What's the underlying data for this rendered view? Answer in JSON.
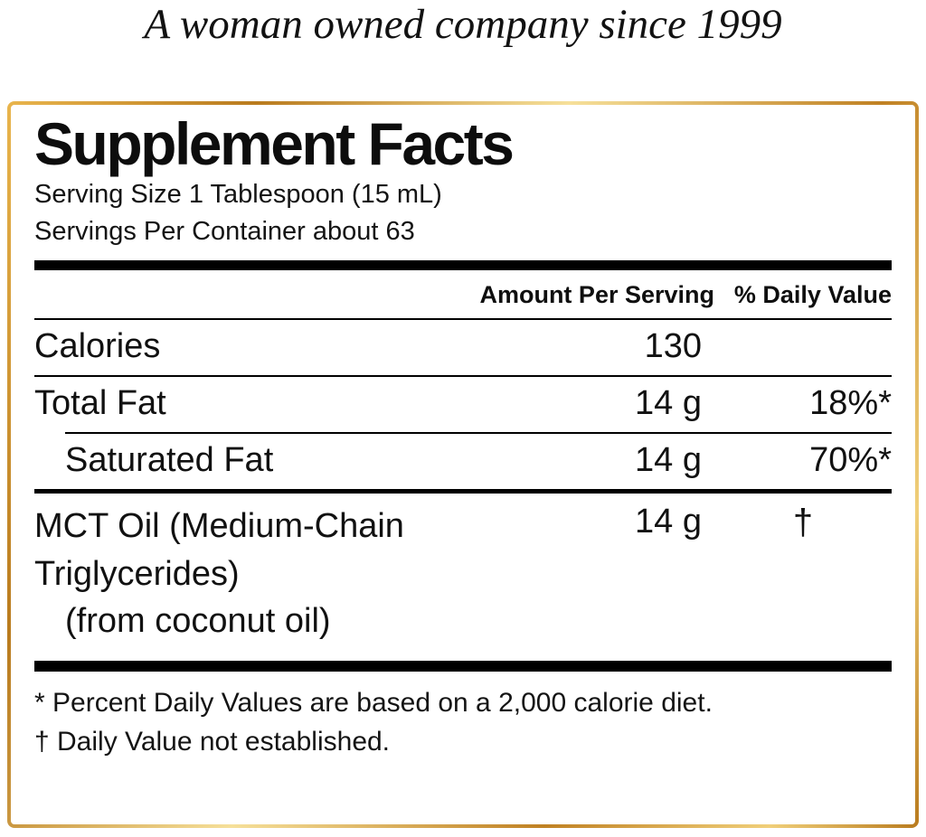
{
  "tagline": "A woman owned company since 1999",
  "panel": {
    "title": "Supplement Facts",
    "serving_size": "Serving Size 1 Tablespoon (15 mL)",
    "servings_per_container": "Servings Per Container about 63",
    "header": {
      "amount": "Amount Per Serving",
      "daily_value": "% Daily Value"
    },
    "rows": [
      {
        "name": "Calories",
        "amount": "130",
        "dv": ""
      },
      {
        "name": "Total Fat",
        "amount": "14 g",
        "dv": "18%*"
      },
      {
        "name": "Saturated Fat",
        "amount": "14 g",
        "dv": "70%*"
      }
    ],
    "ingredient": {
      "line1": "MCT Oil (Medium-Chain",
      "line2": "Triglycerides)",
      "line3": "(from coconut oil)",
      "amount": "14 g",
      "dv": "†"
    },
    "footnotes": [
      "* Percent Daily Values are based on a 2,000 calorie diet.",
      "† Daily Value not established."
    ],
    "colors": {
      "border_gold": "#c98a2a",
      "text": "#111111"
    }
  }
}
